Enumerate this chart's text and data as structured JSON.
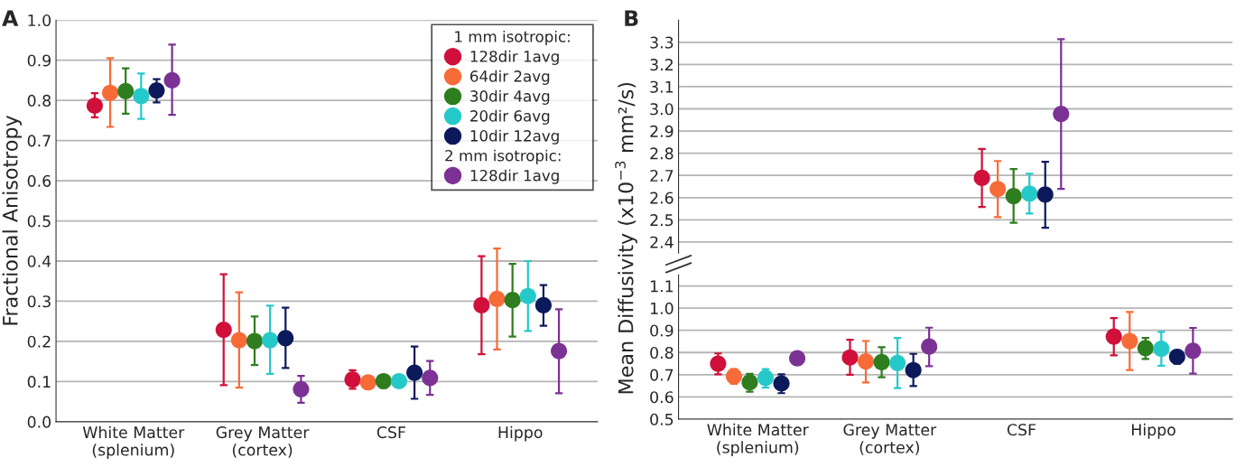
{
  "chart_data": [
    {
      "type": "scatter",
      "title": "A",
      "ylabel": "Fractional Anisotropy",
      "categories": [
        "White Matter\n(splenium)",
        "Grey Matter\n(cortex)",
        "CSF",
        "Hippo"
      ],
      "ylim": [
        0,
        1.0
      ],
      "yticks": [
        {
          "value": 0,
          "label": "0.0"
        },
        0.1,
        0.2,
        0.3,
        0.4,
        0.5,
        0.6,
        0.7,
        0.8,
        0.9,
        {
          "value": 1,
          "label": "1.0"
        }
      ],
      "grid": "y",
      "marker": "circle",
      "legend": "top right",
      "legend_title": "1 mm isotropic:",
      "annotations": [
        "2 mm isotropic:"
      ],
      "series": [
        {
          "name": "128dir 1avg",
          "color": "#d0103a",
          "values": [
            0.787,
            0.229,
            0.105,
            0.29
          ],
          "errors": [
            [
              0.758,
              0.818
            ],
            [
              0.091,
              0.367
            ],
            [
              0.082,
              0.128
            ],
            [
              0.168,
              0.412
            ]
          ]
        },
        {
          "name": "64dir 2avg",
          "color": "#f76b38",
          "values": [
            0.819,
            0.203,
            0.098,
            0.306
          ],
          "errors": [
            [
              0.734,
              0.905
            ],
            [
              0.085,
              0.322
            ],
            null,
            [
              0.18,
              0.431
            ]
          ]
        },
        {
          "name": "30dir 4avg",
          "color": "#2e7d1e",
          "values": [
            0.823,
            0.201,
            0.101,
            0.303
          ],
          "errors": [
            [
              0.767,
              0.88
            ],
            [
              0.141,
              0.262
            ],
            [
              0.084,
              0.101
            ],
            [
              0.212,
              0.393
            ]
          ]
        },
        {
          "name": "20dir 6avg",
          "color": "#26c9c9",
          "values": [
            0.811,
            0.203,
            0.101,
            0.313
          ],
          "errors": [
            [
              0.754,
              0.867
            ],
            [
              0.119,
              0.289
            ],
            null,
            [
              0.226,
              0.4
            ]
          ]
        },
        {
          "name": "10dir 12avg",
          "color": "#0c1a5c",
          "values": [
            0.825,
            0.208,
            0.122,
            0.29
          ],
          "errors": [
            [
              0.795,
              0.853
            ],
            [
              0.134,
              0.284
            ],
            [
              0.057,
              0.187
            ],
            [
              0.239,
              0.34
            ]
          ]
        },
        {
          "name": "128dir 1avg",
          "color": "#7b3294",
          "values": [
            0.85,
            0.081,
            0.109,
            0.176
          ],
          "errors": [
            [
              0.764,
              0.939
            ],
            [
              0.047,
              0.114
            ],
            [
              0.067,
              0.151
            ],
            [
              0.071,
              0.28
            ]
          ]
        }
      ]
    },
    {
      "type": "scatter",
      "title": "B",
      "ylim": [
        2.35,
        3.4
      ],
      "yticks": [
        2.4,
        2.5,
        2.6,
        2.7,
        2.8,
        2.9,
        {
          "value": 3.0,
          "label": "3.0"
        },
        3.1,
        3.2,
        3.3
      ],
      "tick_labels": "y",
      "grid": "y",
      "marker": "circle",
      "series": [
        {
          "color": "#d0103a",
          "values": [
            null,
            null,
            2.689,
            null
          ],
          "errors": [
            null,
            null,
            [
              2.558,
              2.819
            ],
            null
          ]
        },
        {
          "color": "#f76b38",
          "values": [
            null,
            null,
            2.639,
            null
          ],
          "errors": [
            null,
            null,
            [
              2.512,
              2.765
            ],
            null
          ]
        },
        {
          "color": "#2e7d1e",
          "values": [
            null,
            null,
            2.607,
            null
          ],
          "errors": [
            null,
            null,
            [
              2.487,
              2.729
            ],
            null
          ]
        },
        {
          "color": "#26c9c9",
          "values": [
            null,
            null,
            2.618,
            null
          ],
          "errors": [
            null,
            null,
            [
              2.528,
              2.708
            ],
            null
          ]
        },
        {
          "color": "#0c1a5c",
          "values": [
            null,
            null,
            2.614,
            null
          ],
          "errors": [
            null,
            null,
            [
              2.464,
              2.761
            ],
            null
          ]
        },
        {
          "color": "#7b3294",
          "values": [
            null,
            null,
            2.977,
            null
          ],
          "errors": [
            null,
            null,
            [
              2.639,
              3.314
            ],
            null
          ]
        }
      ]
    },
    {
      "type": "scatter",
      "ylabel": "Mean Diffusivity (x10$^{−3}$ mm²/s)",
      "categories": [
        "White Matter\n(splenium)",
        "Grey Matter\n(cortex)",
        "CSF",
        "Hippo"
      ],
      "ylim": [
        0.5,
        1.15
      ],
      "yticks": [
        0.5,
        0.6,
        0.7,
        0.8,
        0.9,
        {
          "value": 1.0,
          "label": "1.0"
        },
        1.1
      ],
      "grid": "y",
      "marker": "circle",
      "series": [
        {
          "color": "#d0103a",
          "values": [
            0.75,
            0.778,
            null,
            0.872
          ],
          "errors": [
            [
              0.702,
              0.796
            ],
            [
              0.7,
              0.858
            ],
            null,
            [
              0.787,
              0.955
            ]
          ]
        },
        {
          "color": "#f76b38",
          "values": [
            0.693,
            0.76,
            null,
            0.852
          ],
          "errors": [
            [
              0.659,
              0.725
            ],
            [
              0.665,
              0.852
            ],
            null,
            [
              0.721,
              0.983
            ]
          ]
        },
        {
          "color": "#2e7d1e",
          "values": [
            0.666,
            0.757,
            null,
            0.82
          ],
          "errors": [
            [
              0.624,
              0.704
            ],
            [
              0.689,
              0.824
            ],
            null,
            [
              0.771,
              0.866
            ]
          ]
        },
        {
          "color": "#26c9c9",
          "values": [
            0.686,
            0.753,
            null,
            0.817
          ],
          "errors": [
            [
              0.642,
              0.725
            ],
            [
              0.64,
              0.866
            ],
            null,
            [
              0.741,
              0.893
            ]
          ]
        },
        {
          "color": "#0c1a5c",
          "values": [
            0.661,
            0.721,
            null,
            0.781
          ],
          "errors": [
            [
              0.617,
              0.702
            ],
            [
              0.649,
              0.794
            ],
            null,
            [
              0.75,
              0.81
            ]
          ]
        },
        {
          "color": "#7b3294",
          "values": [
            0.774,
            0.827,
            null,
            0.808
          ],
          "errors": [
            null,
            [
              0.739,
              0.912
            ],
            null,
            [
              0.705,
              0.911
            ]
          ]
        }
      ]
    }
  ]
}
